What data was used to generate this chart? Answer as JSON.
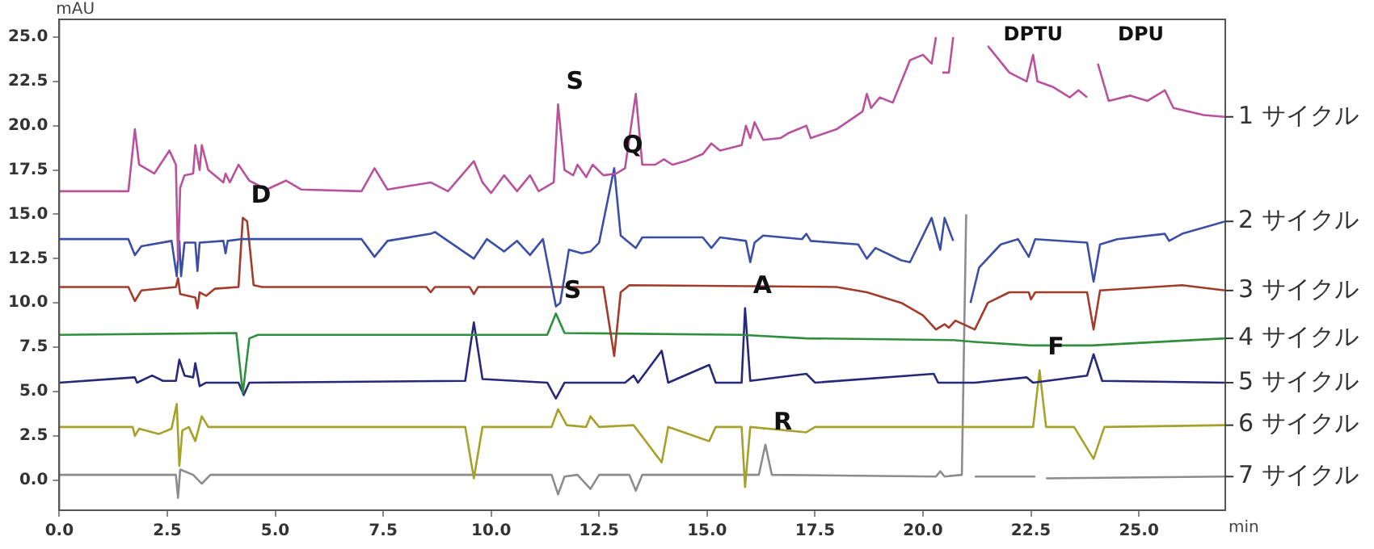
{
  "chart_data": {
    "type": "line",
    "ylabel": "mAU",
    "xlabel": "min",
    "xlim": [
      0,
      27
    ],
    "ylim": [
      -1.7,
      26
    ],
    "xticks": [
      {
        "value": 0,
        "label": "0.0"
      },
      {
        "value": 2.5,
        "label": "2.5"
      },
      {
        "value": 5,
        "label": "5.0"
      },
      {
        "value": 7.5,
        "label": "7.5"
      },
      {
        "value": 10,
        "label": "10.0"
      },
      {
        "value": 12.5,
        "label": "12.5"
      },
      {
        "value": 15,
        "label": "15.0"
      },
      {
        "value": 17.5,
        "label": "17.5"
      },
      {
        "value": 20,
        "label": "20.0"
      },
      {
        "value": 22.5,
        "label": "22.5"
      },
      {
        "value": 25,
        "label": "25.0"
      }
    ],
    "yticks": [
      {
        "value": 0,
        "label": "0.0"
      },
      2.5,
      {
        "value": 5,
        "label": "5.0"
      },
      7.5,
      {
        "value": 10,
        "label": "10.0"
      },
      12.5,
      {
        "value": 15,
        "label": "15.0"
      },
      17.5,
      {
        "value": 20,
        "label": "20.0"
      },
      22.5,
      {
        "value": 25,
        "label": "25.0"
      }
    ],
    "legend": false,
    "series": [
      {
        "name": "1 サイクル",
        "color": "#b9529c",
        "x": [
          0,
          1.6,
          1.75,
          1.85,
          2.2,
          2.55,
          2.7,
          2.75,
          2.8,
          2.9,
          3.1,
          3.15,
          3.25,
          3.3,
          3.45,
          3.8,
          3.85,
          3.95,
          4.15,
          4.4,
          4.8,
          5.25,
          5.6,
          7.0,
          7.3,
          7.6,
          8.1,
          8.6,
          9.0,
          9.6,
          9.8,
          10.0,
          10.3,
          10.6,
          10.9,
          11.1,
          11.45,
          11.55,
          11.7,
          11.9,
          12.0,
          12.2,
          12.35,
          12.6,
          12.9,
          13.1,
          13.35,
          13.5,
          13.8,
          14.0,
          14.2,
          14.5,
          14.9,
          15.1,
          15.3,
          15.8,
          15.9,
          16.0,
          16.1,
          16.3,
          16.7,
          16.9,
          17.3,
          17.4,
          18.0,
          18.6,
          18.7,
          18.8,
          19.0,
          19.3,
          19.7,
          20.0,
          20.2,
          20.3,
          20.35,
          20.45,
          20.6,
          20.7,
          20.75,
          21.3,
          21.5,
          22.0,
          22.4,
          22.55,
          22.65,
          23.0,
          23.4,
          23.6,
          23.8,
          23.9,
          24.05,
          24.3,
          24.8,
          25.2,
          25.6,
          25.8,
          26.5,
          27.0
        ],
        "values": [
          16.3,
          16.3,
          19.8,
          17.8,
          17.3,
          18.6,
          17.8,
          12.4,
          16.5,
          17.2,
          17.3,
          18.9,
          17.5,
          18.9,
          17.5,
          16.8,
          17.3,
          16.8,
          17.8,
          16.9,
          16.4,
          16.9,
          16.4,
          16.3,
          17.6,
          16.4,
          16.6,
          16.8,
          16.3,
          18.0,
          16.8,
          16.2,
          17.2,
          16.3,
          17.2,
          16.3,
          16.8,
          21.2,
          17.5,
          17.2,
          17.8,
          17.1,
          17.8,
          17.2,
          17.3,
          17.6,
          21.8,
          17.8,
          17.8,
          18.1,
          17.8,
          18.0,
          18.4,
          19.0,
          18.6,
          18.9,
          20.0,
          19.3,
          20.2,
          19.2,
          19.3,
          19.6,
          20.0,
          19.3,
          19.8,
          20.8,
          21.8,
          21.0,
          21.6,
          21.3,
          23.7,
          24.0,
          23.5,
          25.0,
          null,
          23.0,
          23.0,
          25.0,
          null,
          null,
          24.5,
          23.0,
          22.5,
          24.0,
          22.5,
          22.2,
          21.6,
          22.0,
          21.6,
          null,
          23.5,
          21.4,
          21.7,
          21.4,
          22.0,
          21.0,
          20.6,
          20.5
        ]
      },
      {
        "name": "2 サイクル",
        "color": "#3b4ea6",
        "x": [
          0,
          1.6,
          1.75,
          1.9,
          2.6,
          2.72,
          2.78,
          2.82,
          2.9,
          3.15,
          3.2,
          3.25,
          3.8,
          3.85,
          3.9,
          4.2,
          7.0,
          7.3,
          7.6,
          8.6,
          8.7,
          9.0,
          9.6,
          9.9,
          10.3,
          10.6,
          10.9,
          11.2,
          11.5,
          11.6,
          11.8,
          12.1,
          12.3,
          12.5,
          12.85,
          13.0,
          13.1,
          13.35,
          13.5,
          14.9,
          15.1,
          15.3,
          15.9,
          16.0,
          16.1,
          16.3,
          17.2,
          17.3,
          17.4,
          18.5,
          18.7,
          18.9,
          19.5,
          19.7,
          20.2,
          20.4,
          20.5,
          20.7,
          20.8,
          20.85,
          21.1,
          21.3,
          21.8,
          22.2,
          22.45,
          22.6,
          23.8,
          23.95,
          24.1,
          24.5,
          25.6,
          25.7,
          26.0,
          27.0
        ],
        "values": [
          13.6,
          13.6,
          12.7,
          13.2,
          13.5,
          11.5,
          13.5,
          11.5,
          13.4,
          13.4,
          11.8,
          13.4,
          13.5,
          12.8,
          13.5,
          13.6,
          13.6,
          12.6,
          13.5,
          13.9,
          14.0,
          13.5,
          12.5,
          13.6,
          12.9,
          13.5,
          12.7,
          13.6,
          9.8,
          10.0,
          13.0,
          12.8,
          12.9,
          13.4,
          17.6,
          13.8,
          13.6,
          13.1,
          13.7,
          13.7,
          13.1,
          13.7,
          13.5,
          12.3,
          13.4,
          13.8,
          13.6,
          13.9,
          13.5,
          13.3,
          12.5,
          13.1,
          12.4,
          12.3,
          14.8,
          13.0,
          14.8,
          13.5,
          null,
          null,
          10.0,
          12.0,
          13.3,
          13.6,
          12.6,
          13.6,
          13.4,
          11.2,
          13.3,
          13.6,
          13.9,
          13.5,
          13.9,
          14.6
        ]
      },
      {
        "name": "3 サイクル",
        "color": "#a33a2a",
        "x": [
          0,
          1.6,
          1.75,
          1.9,
          2.7,
          2.75,
          2.8,
          3.15,
          3.2,
          3.25,
          3.4,
          3.6,
          4.15,
          4.25,
          4.35,
          4.5,
          4.7,
          8.5,
          8.6,
          8.7,
          9.5,
          9.6,
          9.7,
          12.6,
          12.85,
          13.0,
          13.2,
          18.0,
          18.7,
          19.5,
          20.0,
          20.3,
          20.5,
          20.6,
          20.75,
          21.2,
          21.5,
          22.0,
          22.45,
          22.5,
          22.6,
          23.8,
          23.95,
          24.1,
          26.0,
          27.0
        ],
        "values": [
          10.9,
          10.9,
          10.1,
          10.7,
          10.9,
          11.4,
          10.5,
          10.3,
          9.7,
          10.6,
          10.4,
          10.8,
          10.9,
          14.8,
          14.6,
          11.0,
          10.9,
          10.9,
          10.6,
          10.9,
          10.9,
          10.5,
          10.9,
          10.9,
          7.0,
          10.6,
          11.0,
          10.9,
          10.6,
          10.0,
          9.3,
          8.5,
          8.8,
          8.6,
          9.0,
          8.5,
          10.0,
          10.6,
          10.6,
          10.2,
          10.6,
          10.6,
          8.5,
          10.7,
          11.0,
          10.7
        ]
      },
      {
        "name": "4 サイクル",
        "color": "#2f8f3e",
        "x": [
          0,
          4.1,
          4.25,
          4.4,
          4.6,
          11.3,
          11.5,
          11.7,
          15.8,
          17.3,
          20.7,
          21.2,
          22.5,
          23.9,
          27.0
        ],
        "values": [
          8.2,
          8.3,
          4.9,
          8.0,
          8.2,
          8.2,
          9.4,
          8.3,
          8.2,
          8.0,
          7.9,
          7.8,
          7.6,
          7.6,
          8.0
        ]
      },
      {
        "name": "5 サイクル",
        "color": "#26287a",
        "x": [
          0,
          1.75,
          1.8,
          2.15,
          2.4,
          2.7,
          2.78,
          2.9,
          3.1,
          3.15,
          3.25,
          3.4,
          4.15,
          4.27,
          4.4,
          9.4,
          9.6,
          9.8,
          11.3,
          11.5,
          11.7,
          13.1,
          13.3,
          13.4,
          13.95,
          14.1,
          15.05,
          15.2,
          15.8,
          15.88,
          16.0,
          17.3,
          17.5,
          20.25,
          20.35,
          20.7,
          21.2,
          22.4,
          22.55,
          23.8,
          23.95,
          24.15,
          27.0
        ],
        "values": [
          5.5,
          5.8,
          5.5,
          5.9,
          5.6,
          5.6,
          6.8,
          5.9,
          5.8,
          6.6,
          5.3,
          5.5,
          5.5,
          4.8,
          5.5,
          5.6,
          8.9,
          5.7,
          5.5,
          4.6,
          5.5,
          5.5,
          5.9,
          5.5,
          7.3,
          5.5,
          6.5,
          5.5,
          5.5,
          9.7,
          5.6,
          6.0,
          5.5,
          6.0,
          5.5,
          5.5,
          5.5,
          5.8,
          5.5,
          5.9,
          7.1,
          5.6,
          5.5
        ]
      },
      {
        "name": "6 サイクル",
        "color": "#a6a12a",
        "x": [
          0,
          1.7,
          1.75,
          1.85,
          2.3,
          2.6,
          2.72,
          2.78,
          2.85,
          3.0,
          3.15,
          3.3,
          3.45,
          9.4,
          9.6,
          9.8,
          11.4,
          11.55,
          11.75,
          12.2,
          12.3,
          12.5,
          13.3,
          13.95,
          14.1,
          15.05,
          15.2,
          15.8,
          15.88,
          16.0,
          17.3,
          17.5,
          20.7,
          21.2,
          22.55,
          22.7,
          22.85,
          23.5,
          23.95,
          24.2,
          27.0
        ],
        "values": [
          3.0,
          3.0,
          2.5,
          2.9,
          2.6,
          2.9,
          4.3,
          0.8,
          2.8,
          3.0,
          2.2,
          3.6,
          3.0,
          3.0,
          0.1,
          3.0,
          3.0,
          4.0,
          3.1,
          3.0,
          3.6,
          3.0,
          3.1,
          1.0,
          3.0,
          2.2,
          3.0,
          3.0,
          -0.4,
          3.0,
          2.7,
          3.0,
          3.0,
          3.0,
          3.0,
          6.2,
          3.0,
          3.0,
          1.2,
          3.0,
          3.1
        ]
      },
      {
        "name": "7 サイクル",
        "color": "#8c8c8c",
        "x": [
          0,
          2.7,
          2.75,
          2.8,
          3.1,
          3.3,
          3.5,
          11.4,
          11.55,
          11.7,
          12.0,
          12.3,
          12.5,
          13.2,
          13.35,
          13.5,
          16.2,
          16.35,
          16.5,
          20.3,
          20.4,
          20.5,
          20.9,
          21.0,
          21.1,
          21.2,
          22.6,
          22.75,
          22.85,
          27.0
        ],
        "values": [
          0.3,
          0.3,
          -1.0,
          0.6,
          0.3,
          -0.2,
          0.3,
          0.3,
          -0.8,
          0.2,
          0.3,
          -0.5,
          0.3,
          0.3,
          -0.6,
          0.3,
          0.3,
          2.0,
          0.3,
          0.2,
          0.5,
          0.2,
          0.3,
          15.0,
          null,
          0.2,
          0.2,
          null,
          0.1,
          0.2
        ]
      }
    ],
    "annotations": [
      {
        "text": "S",
        "x": 11.55,
        "y": 21.2
      },
      {
        "text": "Q",
        "x": 12.85,
        "y": 17.6
      },
      {
        "text": "D",
        "x": 4.25,
        "y": 14.8
      },
      {
        "text": "S",
        "x": 11.5,
        "y": 9.4
      },
      {
        "text": "A",
        "x": 15.88,
        "y": 9.7
      },
      {
        "text": "F",
        "x": 22.7,
        "y": 6.2
      },
      {
        "text": "R",
        "x": 16.35,
        "y": 2.0
      },
      {
        "text": "DPTU",
        "x": 22.55,
        "y": 24.0
      },
      "DPU"
    ]
  }
}
